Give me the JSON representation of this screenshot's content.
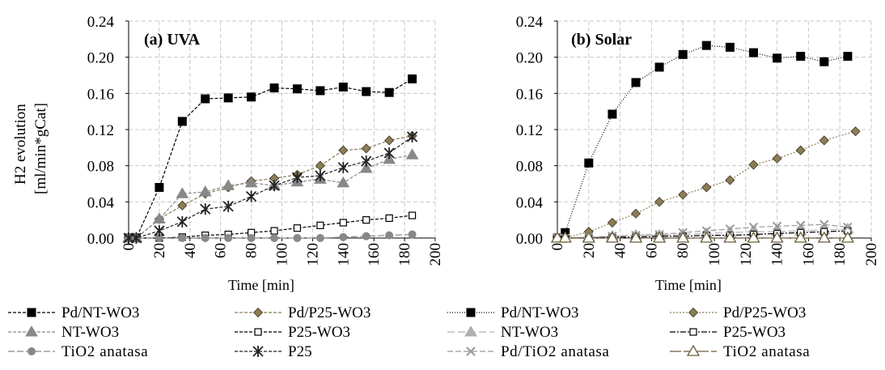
{
  "chart_data": [
    {
      "type": "line",
      "title": "(a) UVA",
      "xlabel": "Time [min]",
      "ylabel_line1": "H2 evolution",
      "ylabel_line2": "[ml/min*gCat]",
      "xlim": [
        0,
        200
      ],
      "ylim": [
        0,
        0.24
      ],
      "xticks": [
        0,
        20,
        40,
        60,
        80,
        100,
        120,
        140,
        160,
        180,
        200
      ],
      "yticks": [
        "0.00",
        "0.04",
        "0.08",
        "0.12",
        "0.16",
        "0.20",
        "0.24"
      ],
      "grid": true,
      "legend_position": "bottom",
      "series": [
        {
          "name": "Pd/NT-WO3",
          "marker": "square-filled",
          "color": "#000000",
          "dash": "4,2",
          "x": [
            0,
            5,
            20,
            35,
            50,
            65,
            80,
            95,
            110,
            125,
            140,
            155,
            170,
            185
          ],
          "y": [
            0,
            0,
            0.056,
            0.129,
            0.154,
            0.155,
            0.156,
            0.166,
            0.165,
            0.163,
            0.167,
            0.162,
            0.161,
            0.176
          ]
        },
        {
          "name": "Pd/P25-WO3",
          "marker": "diamond-filled",
          "color": "#8b7d55",
          "dash": "4,2",
          "x": [
            0,
            5,
            20,
            35,
            50,
            65,
            80,
            95,
            110,
            125,
            140,
            155,
            170,
            185
          ],
          "y": [
            0,
            0,
            0.021,
            0.036,
            0.049,
            0.056,
            0.063,
            0.066,
            0.07,
            0.08,
            0.097,
            0.099,
            0.108,
            0.113
          ]
        },
        {
          "name": "NT-WO3",
          "marker": "triangle-filled",
          "color": "#888888",
          "dash": "4,2",
          "x": [
            0,
            5,
            20,
            35,
            50,
            65,
            80,
            95,
            110,
            125,
            140,
            155,
            170,
            185
          ],
          "y": [
            0,
            0,
            0.021,
            0.049,
            0.051,
            0.058,
            0.061,
            0.058,
            0.062,
            0.065,
            0.061,
            0.077,
            0.087,
            0.092
          ]
        },
        {
          "name": "P25-WO3",
          "marker": "square-open",
          "color": "#000000",
          "dash": "4,2",
          "x": [
            0,
            5,
            20,
            35,
            50,
            65,
            80,
            95,
            110,
            125,
            140,
            155,
            170,
            185
          ],
          "y": [
            0,
            0,
            0,
            0.001,
            0.003,
            0.004,
            0.006,
            0.008,
            0.011,
            0.014,
            0.017,
            0.02,
            0.022,
            0.025
          ]
        },
        {
          "name": "TiO2 anatasa",
          "marker": "circle-filled",
          "color": "#888888",
          "dash": "8,3",
          "x": [
            0,
            5,
            20,
            35,
            50,
            65,
            80,
            95,
            110,
            125,
            140,
            155,
            170,
            185
          ],
          "y": [
            0,
            0,
            0,
            0,
            0,
            0,
            0,
            0,
            0,
            0,
            0.001,
            0.002,
            0.003,
            0.004
          ]
        },
        {
          "name": "P25",
          "marker": "asterisk",
          "color": "#222222",
          "dash": "4,2",
          "x": [
            0,
            5,
            20,
            35,
            50,
            65,
            80,
            95,
            110,
            125,
            140,
            155,
            170,
            185
          ],
          "y": [
            0,
            0,
            0.008,
            0.018,
            0.032,
            0.035,
            0.046,
            0.058,
            0.067,
            0.069,
            0.078,
            0.085,
            0.094,
            0.112
          ]
        }
      ]
    },
    {
      "type": "line",
      "title": "(b) Solar",
      "xlabel": "Time [min]",
      "xlim": [
        0,
        200
      ],
      "ylim": [
        0,
        0.24
      ],
      "xticks": [
        0,
        20,
        40,
        60,
        80,
        100,
        120,
        140,
        160,
        180,
        200
      ],
      "yticks": [
        "0.00",
        "0.04",
        "0.08",
        "0.12",
        "0.16",
        "0.20",
        "0.24"
      ],
      "grid": true,
      "legend_position": "bottom",
      "series": [
        {
          "name": "Pd/NT-WO3",
          "marker": "square-filled",
          "color": "#000000",
          "dash": "1,2",
          "x": [
            0,
            5,
            20,
            35,
            50,
            65,
            80,
            95,
            110,
            125,
            140,
            155,
            170,
            185
          ],
          "y": [
            0,
            0.006,
            0.083,
            0.137,
            0.172,
            0.189,
            0.203,
            0.213,
            0.211,
            0.205,
            0.199,
            0.201,
            0.195,
            0.201
          ]
        },
        {
          "name": "Pd/P25-WO3",
          "marker": "diamond-filled",
          "color": "#8b7d55",
          "dash": "2,2",
          "x": [
            0,
            5,
            20,
            35,
            50,
            65,
            80,
            95,
            110,
            125,
            140,
            155,
            170,
            190
          ],
          "y": [
            0,
            0,
            0.007,
            0.017,
            0.027,
            0.04,
            0.048,
            0.056,
            0.064,
            0.081,
            0.088,
            0.097,
            0.108,
            0.118
          ]
        },
        {
          "name": "NT-WO3",
          "marker": "triangle-filled",
          "color": "#b0b0b0",
          "dash": "9,4",
          "x": [
            0,
            5,
            20,
            35,
            50,
            65,
            80,
            95,
            110,
            125,
            140,
            155,
            170,
            185
          ],
          "y": [
            0,
            0,
            0.001,
            0.002,
            0.003,
            0.003,
            0.004,
            0.005,
            0.006,
            0.007,
            0.007,
            0.008,
            0.009,
            0.01
          ]
        },
        {
          "name": "P25-WO3",
          "marker": "square-open",
          "color": "#000000",
          "dash": "7,2,2,2",
          "x": [
            0,
            5,
            20,
            35,
            50,
            65,
            80,
            95,
            110,
            125,
            140,
            155,
            170,
            185
          ],
          "y": [
            0,
            0,
            0,
            0.001,
            0.001,
            0.002,
            0.002,
            0.003,
            0.003,
            0.004,
            0.005,
            0.006,
            0.007,
            0.008
          ]
        },
        {
          "name": "Pd/TiO2 anatasa",
          "marker": "cross",
          "color": "#999999",
          "dash": "7,3",
          "x": [
            0,
            5,
            20,
            35,
            50,
            65,
            80,
            95,
            110,
            125,
            140,
            155,
            170,
            185
          ],
          "y": [
            0,
            0,
            0.001,
            0.002,
            0.003,
            0.004,
            0.006,
            0.008,
            0.01,
            0.012,
            0.013,
            0.014,
            0.015,
            0.012
          ]
        },
        {
          "name": "TiO2 anatasa",
          "marker": "triangle-open",
          "color": "#6b5e3a",
          "dash": "14,3",
          "x": [
            0,
            5,
            20,
            35,
            50,
            65,
            80,
            95,
            110,
            125,
            140,
            155,
            170,
            185
          ],
          "y": [
            0,
            0,
            0,
            0,
            0,
            0,
            0,
            0,
            0,
            0,
            0,
            0,
            0,
            0
          ]
        }
      ]
    }
  ]
}
